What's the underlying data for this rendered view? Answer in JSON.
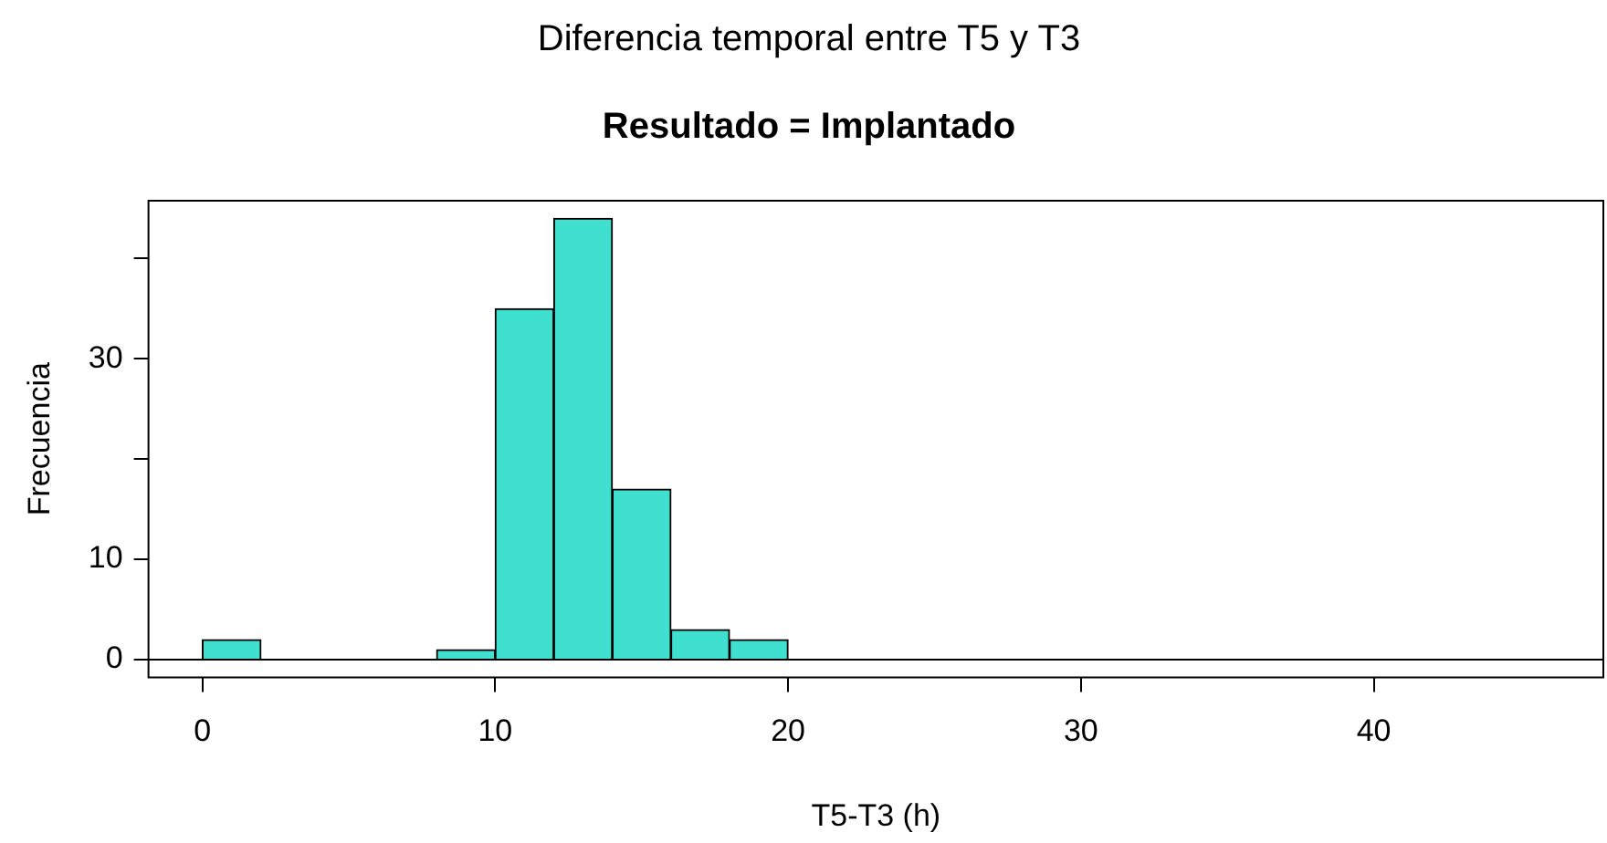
{
  "chart_data": {
    "type": "histogram",
    "title": "Diferencia temporal entre T5 y T3",
    "subtitle": "Resultado = Implantado",
    "xlabel": "T5-T3 (h)",
    "ylabel": "Frecuencia",
    "bins": [
      0,
      2,
      4,
      6,
      8,
      10,
      12,
      14,
      16,
      18,
      20
    ],
    "values": [
      2,
      0,
      0,
      0,
      1,
      35,
      44,
      17,
      3,
      2
    ],
    "color": "#40e0d0",
    "xlim": [
      -1.84,
      47.84
    ],
    "xticks": [
      0,
      10,
      20,
      30,
      40
    ],
    "ylim": [
      -1.76,
      45.76
    ],
    "yticks": [
      0,
      10,
      {
        "value": 20,
        "label": null
      },
      30,
      {
        "value": 40,
        "label": null
      }
    ],
    "ref_lines": [
      {
        "axis": "y",
        "value": 0
      }
    ],
    "grid": false,
    "legend": false
  }
}
